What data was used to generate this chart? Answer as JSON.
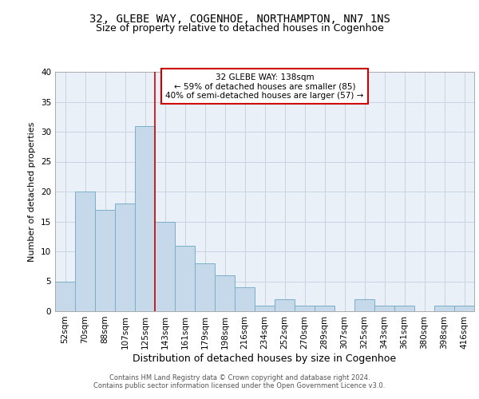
{
  "title1": "32, GLEBE WAY, COGENHOE, NORTHAMPTON, NN7 1NS",
  "title2": "Size of property relative to detached houses in Cogenhoe",
  "xlabel": "Distribution of detached houses by size in Cogenhoe",
  "ylabel": "Number of detached properties",
  "categories": [
    "52sqm",
    "70sqm",
    "88sqm",
    "107sqm",
    "125sqm",
    "143sqm",
    "161sqm",
    "179sqm",
    "198sqm",
    "216sqm",
    "234sqm",
    "252sqm",
    "270sqm",
    "289sqm",
    "307sqm",
    "325sqm",
    "343sqm",
    "361sqm",
    "380sqm",
    "398sqm",
    "416sqm"
  ],
  "values": [
    5,
    20,
    17,
    18,
    31,
    15,
    11,
    8,
    6,
    4,
    1,
    2,
    1,
    1,
    0,
    2,
    1,
    1,
    0,
    1,
    1
  ],
  "bar_color": "#c6d9ea",
  "bar_edge_color": "#7aafc8",
  "vline_color": "#cc0000",
  "vline_x": 4.5,
  "annotation_lines": [
    "32 GLEBE WAY: 138sqm",
    "← 59% of detached houses are smaller (85)",
    "40% of semi-detached houses are larger (57) →"
  ],
  "annotation_box_color": "white",
  "annotation_box_edge_color": "#cc0000",
  "ylim": [
    0,
    40
  ],
  "yticks": [
    0,
    5,
    10,
    15,
    20,
    25,
    30,
    35,
    40
  ],
  "grid_color": "#c8d4e0",
  "bg_color": "#eaf0f8",
  "footer_line1": "Contains HM Land Registry data © Crown copyright and database right 2024.",
  "footer_line2": "Contains public sector information licensed under the Open Government Licence v3.0.",
  "title1_fontsize": 10,
  "title2_fontsize": 9,
  "xlabel_fontsize": 9,
  "ylabel_fontsize": 8,
  "tick_fontsize": 7.5,
  "annotation_fontsize": 7.5,
  "footer_fontsize": 6
}
